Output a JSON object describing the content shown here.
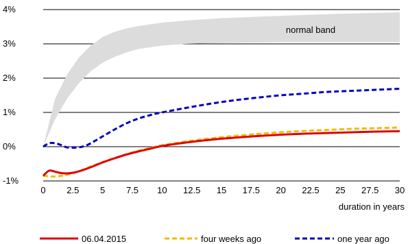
{
  "chart_data": {
    "type": "line",
    "xlabel": "duration in years",
    "ylabel": "",
    "xlim": [
      0,
      30
    ],
    "ylim": [
      -1,
      4
    ],
    "x_ticks": [
      "0",
      "2.5",
      "5",
      "7.5",
      "10",
      "12.5",
      "15",
      "17.5",
      "20",
      "22.5",
      "25",
      "27.5",
      "30"
    ],
    "y_ticks": [
      "-1%",
      "0%",
      "1%",
      "2%",
      "3%",
      "4%"
    ],
    "grid": "horizontal",
    "band": {
      "label": "normal band",
      "x": [
        0,
        1,
        2,
        3,
        4,
        5,
        6,
        7,
        8,
        10,
        12,
        15,
        20,
        25,
        30
      ],
      "upper": [
        0,
        1.4,
        2.1,
        2.6,
        2.95,
        3.2,
        3.35,
        3.45,
        3.52,
        3.62,
        3.68,
        3.75,
        3.82,
        3.88,
        3.92
      ],
      "lower": [
        0,
        0.8,
        1.4,
        1.85,
        2.2,
        2.45,
        2.62,
        2.75,
        2.85,
        2.95,
        3.0,
        3.03,
        3.05,
        3.05,
        3.05
      ]
    },
    "series": [
      {
        "name": "06.04.2015",
        "color": "#e00000",
        "dash": "solid",
        "x": [
          0,
          0.5,
          1,
          1.5,
          2,
          2.5,
          3,
          4,
          5,
          6,
          7,
          8,
          9,
          10,
          12,
          14,
          16,
          18,
          20,
          22,
          24,
          26,
          28,
          30
        ],
        "y": [
          -0.85,
          -0.7,
          -0.73,
          -0.77,
          -0.78,
          -0.76,
          -0.72,
          -0.6,
          -0.46,
          -0.34,
          -0.23,
          -0.14,
          -0.06,
          0.02,
          0.12,
          0.2,
          0.26,
          0.31,
          0.35,
          0.38,
          0.4,
          0.42,
          0.44,
          0.45
        ]
      },
      {
        "name": "four weeks ago",
        "color": "#f5b800",
        "dash": "dashed",
        "x": [
          0,
          1,
          2,
          3,
          4,
          5,
          6,
          7,
          8,
          9,
          10,
          12,
          14,
          16,
          18,
          20,
          22,
          24,
          26,
          28,
          30
        ],
        "y": [
          -0.85,
          -0.87,
          -0.82,
          -0.72,
          -0.58,
          -0.45,
          -0.33,
          -0.22,
          -0.12,
          -0.04,
          0.04,
          0.15,
          0.24,
          0.31,
          0.37,
          0.42,
          0.46,
          0.49,
          0.52,
          0.54,
          0.56
        ]
      },
      {
        "name": "one year ago",
        "color": "#0000c0",
        "dash": "dashed",
        "x": [
          0,
          0.5,
          1,
          1.5,
          2,
          2.5,
          3,
          3.5,
          4,
          5,
          6,
          7,
          8,
          9,
          10,
          12,
          14,
          16,
          18,
          20,
          22,
          24,
          26,
          28,
          30
        ],
        "y": [
          0.0,
          0.1,
          0.1,
          0.05,
          -0.02,
          -0.03,
          -0.02,
          0.02,
          0.1,
          0.3,
          0.5,
          0.68,
          0.82,
          0.92,
          1.0,
          1.13,
          1.25,
          1.35,
          1.43,
          1.5,
          1.55,
          1.6,
          1.63,
          1.66,
          1.69
        ]
      }
    ]
  }
}
